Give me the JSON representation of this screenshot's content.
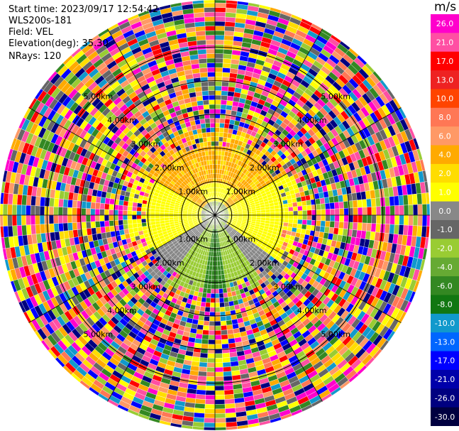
{
  "header": {
    "start_time": "Start time: 2023/09/17 12:54:42",
    "instrument": "WLS200s-181",
    "field": "Field: VEL",
    "elevation": "Elevation(deg): 35.30",
    "nrays": "NRays: 120"
  },
  "range_rings": {
    "labels": [
      "1.00km",
      "2.00km",
      "3.00km",
      "4.00km",
      "5.00km"
    ],
    "outer_km": 6.4
  },
  "colorbar": {
    "unit": "m/s",
    "ticks": [
      "26.0",
      "21.0",
      "17.0",
      "13.0",
      "10.0",
      "8.0",
      "6.0",
      "4.0",
      "2.0",
      "1.0",
      "0.0",
      "-1.0",
      "-2.0",
      "-4.0",
      "-6.0",
      "-8.0",
      "-10.0",
      "-13.0",
      "-17.0",
      "-21.0",
      "-26.0",
      "-30.0"
    ],
    "colors": [
      "#ff00cc",
      "#ff4fa3",
      "#ff0000",
      "#ee2222",
      "#ff4400",
      "#ff7755",
      "#ff9966",
      "#ffaa00",
      "#ffdd00",
      "#ffff00",
      "#888888",
      "#666666",
      "#99cc33",
      "#66aa33",
      "#338822",
      "#117711",
      "#1199cc",
      "#0066ff",
      "#0000ff",
      "#0000aa",
      "#000080",
      "#000040"
    ]
  },
  "colors": {
    "ring": "#000000",
    "noise_palette": [
      "#ff00cc",
      "#ff4fa3",
      "#ff0000",
      "#ff7755",
      "#ffaa00",
      "#ffdd00",
      "#ffff00",
      "#99cc33",
      "#338822",
      "#1199cc",
      "#0000ff",
      "#000080",
      "#666666",
      "#ff9966"
    ]
  }
}
